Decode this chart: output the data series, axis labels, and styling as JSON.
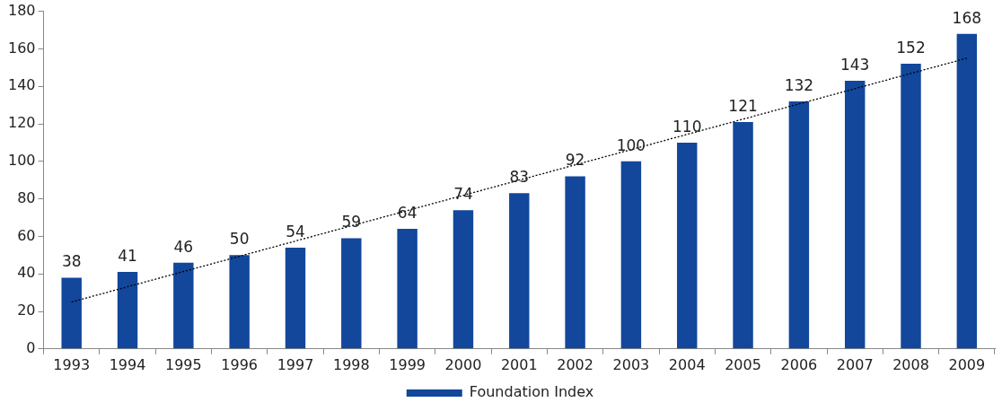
{
  "chart_data": {
    "type": "bar",
    "categories": [
      "1993",
      "1994",
      "1995",
      "1996",
      "1997",
      "1998",
      "1999",
      "2000",
      "2001",
      "2002",
      "2003",
      "2004",
      "2005",
      "2006",
      "2007",
      "2008",
      "2009"
    ],
    "series": [
      {
        "name": "Foundation Index",
        "color": "#12479b",
        "values": [
          38,
          41,
          46,
          50,
          54,
          59,
          64,
          74,
          83,
          92,
          100,
          110,
          121,
          132,
          143,
          152,
          168
        ],
        "value_labels": [
          "38",
          "41",
          "46",
          "50",
          "54",
          "59",
          "64",
          "74",
          "83",
          "92",
          "100",
          "110",
          "121",
          "132",
          "143",
          "152",
          "168"
        ]
      },
      {
        "type": "line",
        "values": [
          25,
          null,
          null,
          null,
          null,
          null,
          null,
          null,
          null,
          null,
          null,
          null,
          null,
          null,
          null,
          null,
          155
        ],
        "color": "#000000",
        "line_style": "dotted",
        "marker": "none"
      }
    ],
    "ylim": [
      0,
      180
    ],
    "yticks": [
      0,
      20,
      40,
      60,
      80,
      100,
      120,
      140,
      160,
      180
    ],
    "legend": "bottom"
  }
}
